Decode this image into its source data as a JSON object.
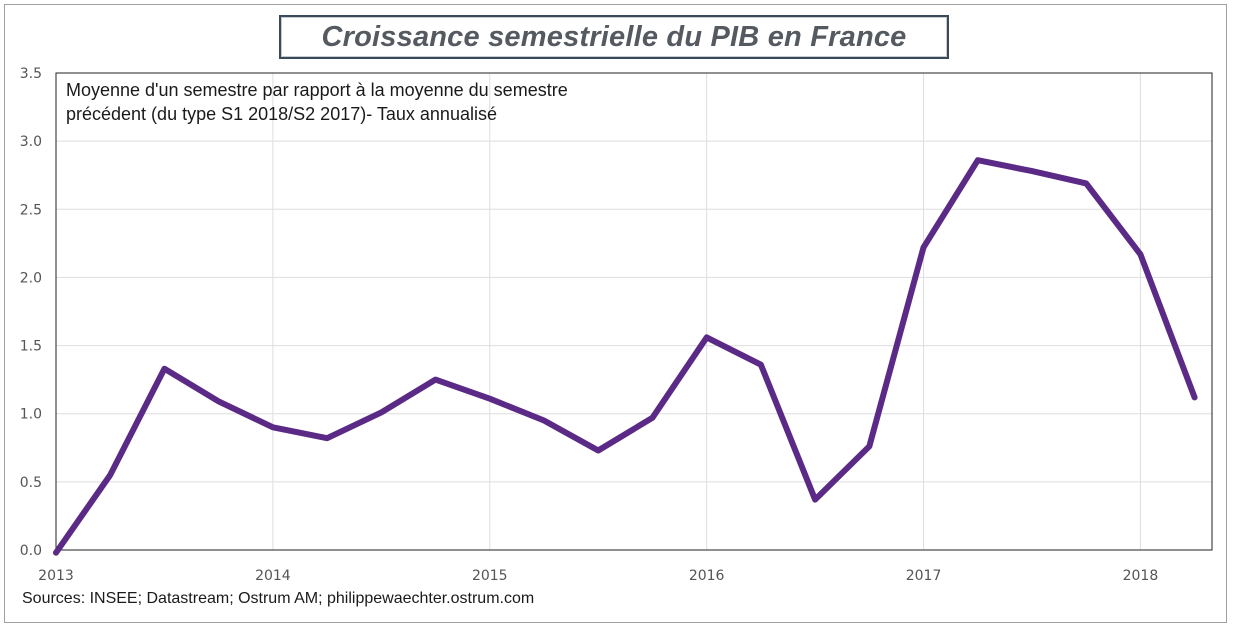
{
  "chart_data": {
    "type": "line",
    "title": "Croissance semestrielle du PIB en France",
    "subtitle_lines": [
      "Moyenne d'un semestre par rapport à la moyenne du semestre",
      "précédent (du type S1 2018/S2 2017)- Taux annualisé"
    ],
    "source": "Sources: INSEE;  Datastream;  Ostrum  AM; philippewaechter.ostrum.com",
    "xlabel": "",
    "ylabel": "",
    "x_ticks": [
      {
        "value": 2013.0,
        "label": "2013"
      },
      {
        "value": 2014.0,
        "label": "2014"
      },
      {
        "value": 2015.0,
        "label": "2015"
      },
      {
        "value": 2016.0,
        "label": "2016"
      },
      {
        "value": 2017.0,
        "label": "2017"
      },
      {
        "value": 2018.0,
        "label": "2018"
      }
    ],
    "y_ticks": [
      "0.0",
      "0.5",
      "1.0",
      "1.5",
      "2.0",
      "2.5",
      "3.0",
      "3.5"
    ],
    "xlim": [
      2013.0,
      2018.33
    ],
    "ylim": [
      0.0,
      3.5
    ],
    "grid": true,
    "legend": "none",
    "series": [
      {
        "color": "#5b2a86",
        "x": [
          2013.0,
          2013.25,
          2013.5,
          2013.75,
          2014.0,
          2014.25,
          2014.5,
          2014.75,
          2015.0,
          2015.25,
          2015.5,
          2015.75,
          2016.0,
          2016.25,
          2016.5,
          2016.75,
          2017.0,
          2017.25,
          2017.5,
          2017.75,
          2018.0,
          2018.25
        ],
        "values": [
          -0.02,
          0.55,
          1.33,
          1.09,
          0.9,
          0.82,
          1.01,
          1.25,
          1.11,
          0.95,
          0.73,
          0.97,
          1.56,
          1.36,
          0.37,
          0.76,
          2.22,
          2.86,
          2.78,
          2.69,
          2.17,
          1.12
        ]
      }
    ]
  }
}
